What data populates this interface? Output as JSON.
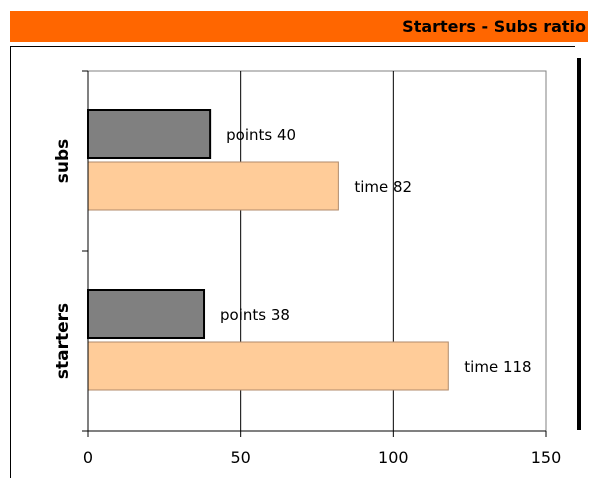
{
  "title": "Starters - Subs ratio",
  "chart_data": {
    "type": "bar",
    "orientation": "horizontal",
    "categories": [
      "subs",
      "starters"
    ],
    "series": [
      {
        "name": "points",
        "values": [
          40,
          38
        ],
        "color": "#808080"
      },
      {
        "name": "time",
        "values": [
          82,
          118
        ],
        "color": "#ffcc99"
      }
    ],
    "data_labels": [
      [
        "points 40",
        "time 82"
      ],
      [
        "points 38",
        "time 118"
      ]
    ],
    "x_ticks": [
      0,
      50,
      100,
      150
    ],
    "x_tick_labels": [
      "0",
      "50",
      "100",
      "150"
    ],
    "xlim": [
      0,
      150
    ],
    "grid": true,
    "legend": "none"
  }
}
